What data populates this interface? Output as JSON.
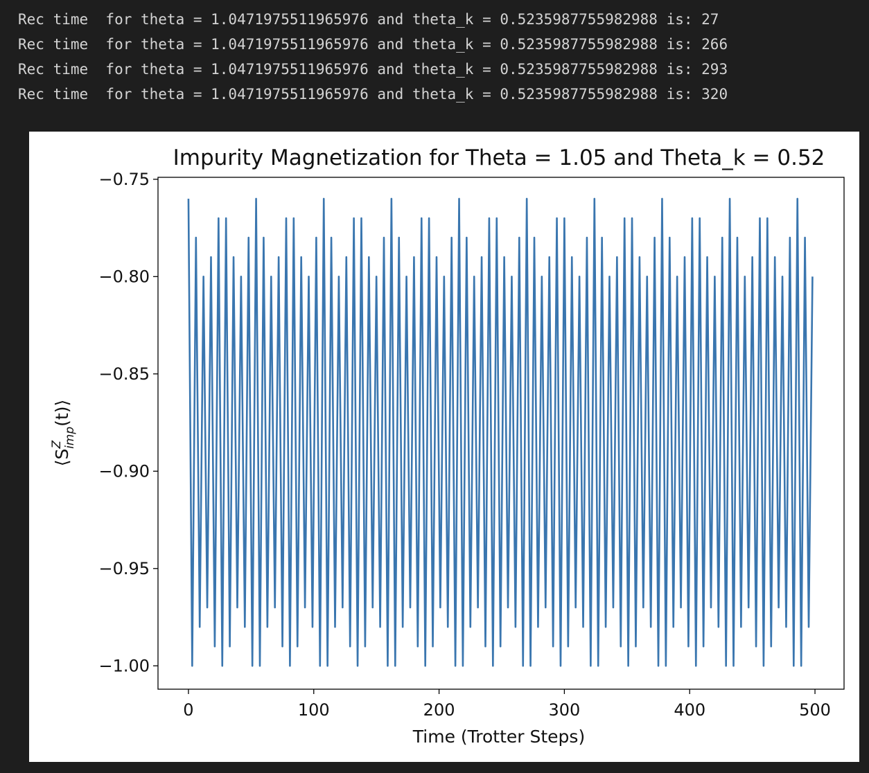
{
  "output_lines": [
    "Rec time  for theta = 1.0471975511965976 and theta_k = 0.5235987755982988 is: 27",
    "Rec time  for theta = 1.0471975511965976 and theta_k = 0.5235987755982988 is: 266",
    "Rec time  for theta = 1.0471975511965976 and theta_k = 0.5235987755982988 is: 293",
    "Rec time  for theta = 1.0471975511965976 and theta_k = 0.5235987755982988 is: 320"
  ],
  "chart_data": {
    "type": "line",
    "title": "Impurity Magnetization for Theta = 1.05 and Theta_k = 0.52",
    "xlabel": "Time (Trotter Steps)",
    "ylabel": {
      "base": "⟨S",
      "sup": "Z",
      "sub": "imp",
      "rest": "(t)⟩"
    },
    "color": "#3a76af",
    "xlim": [
      -24.3,
      523.2
    ],
    "ylim": [
      -1.012,
      -0.749
    ],
    "xticks": [
      0,
      100,
      200,
      300,
      400,
      500
    ],
    "yticks": [
      {
        "value": -0.75,
        "label": "−0.75"
      },
      {
        "value": -0.8,
        "label": "−0.80"
      },
      {
        "value": -0.85,
        "label": "−0.85"
      },
      {
        "value": -0.9,
        "label": "−0.90"
      },
      {
        "value": -0.95,
        "label": "−0.95"
      },
      {
        "value": -1.0,
        "label": "−1.00"
      }
    ],
    "x": [
      0,
      3,
      6,
      9,
      12,
      15,
      18,
      21,
      24,
      27,
      30,
      33,
      36,
      39,
      42,
      45,
      48,
      51,
      54,
      57,
      60,
      63,
      66,
      69,
      72,
      75,
      78,
      81,
      84,
      87,
      90,
      93,
      96,
      99,
      102,
      105,
      108,
      111,
      114,
      117,
      120,
      123,
      126,
      129,
      132,
      135,
      138,
      141,
      144,
      147,
      150,
      153,
      156,
      159,
      162,
      165,
      168,
      171,
      174,
      177,
      180,
      183,
      186,
      189,
      192,
      195,
      198,
      201,
      204,
      207,
      210,
      213,
      216,
      219,
      222,
      225,
      228,
      231,
      234,
      237,
      240,
      243,
      246,
      249,
      252,
      255,
      258,
      261,
      264,
      267,
      270,
      273,
      276,
      279,
      282,
      285,
      288,
      291,
      294,
      297,
      300,
      303,
      306,
      309,
      312,
      315,
      318,
      321,
      324,
      327,
      330,
      333,
      336,
      339,
      342,
      345,
      348,
      351,
      354,
      357,
      360,
      363,
      366,
      369,
      372,
      375,
      378,
      381,
      384,
      387,
      390,
      393,
      396,
      399,
      402,
      405,
      408,
      411,
      414,
      417,
      420,
      423,
      426,
      429,
      432,
      435,
      438,
      441,
      444,
      447,
      450,
      453,
      456,
      459,
      462,
      465,
      468,
      471,
      474,
      477,
      480,
      483,
      486,
      489,
      492,
      495,
      498
    ],
    "values": [
      -0.76,
      -1.0,
      -0.78,
      -0.98,
      -0.8,
      -0.97,
      -0.79,
      -0.99,
      -0.77,
      -1.0,
      -0.77,
      -0.99,
      -0.79,
      -0.97,
      -0.8,
      -0.98,
      -0.78,
      -1.0,
      -0.76,
      -1.0,
      -0.78,
      -0.98,
      -0.8,
      -0.97,
      -0.79,
      -0.99,
      -0.77,
      -1.0,
      -0.77,
      -0.99,
      -0.79,
      -0.97,
      -0.8,
      -0.98,
      -0.78,
      -1.0,
      -0.76,
      -1.0,
      -0.78,
      -0.98,
      -0.8,
      -0.97,
      -0.79,
      -0.99,
      -0.77,
      -1.0,
      -0.77,
      -0.99,
      -0.79,
      -0.97,
      -0.8,
      -0.98,
      -0.78,
      -1.0,
      -0.76,
      -1.0,
      -0.78,
      -0.98,
      -0.8,
      -0.97,
      -0.79,
      -0.99,
      -0.77,
      -1.0,
      -0.77,
      -0.99,
      -0.79,
      -0.97,
      -0.8,
      -0.98,
      -0.78,
      -1.0,
      -0.76,
      -1.0,
      -0.78,
      -0.98,
      -0.8,
      -0.97,
      -0.79,
      -0.99,
      -0.77,
      -1.0,
      -0.77,
      -0.99,
      -0.79,
      -0.97,
      -0.8,
      -0.98,
      -0.78,
      -1.0,
      -0.76,
      -1.0,
      -0.78,
      -0.98,
      -0.8,
      -0.97,
      -0.79,
      -0.99,
      -0.77,
      -1.0,
      -0.77,
      -0.99,
      -0.79,
      -0.97,
      -0.8,
      -0.98,
      -0.78,
      -1.0,
      -0.76,
      -1.0,
      -0.78,
      -0.98,
      -0.8,
      -0.97,
      -0.79,
      -0.99,
      -0.77,
      -1.0,
      -0.77,
      -0.99,
      -0.79,
      -0.97,
      -0.8,
      -0.98,
      -0.78,
      -1.0,
      -0.76,
      -1.0,
      -0.78,
      -0.98,
      -0.8,
      -0.97,
      -0.79,
      -0.99,
      -0.77,
      -1.0,
      -0.77,
      -0.99,
      -0.79,
      -0.97,
      -0.8,
      -0.98,
      -0.78,
      -1.0,
      -0.76,
      -1.0,
      -0.78,
      -0.98,
      -0.8,
      -0.97,
      -0.79,
      -0.99,
      -0.77,
      -1.0,
      -0.77,
      -0.99,
      -0.79,
      -0.97,
      -0.8,
      -0.98,
      -0.78,
      -1.0,
      -0.76,
      -1.0,
      -0.78,
      -0.98,
      -0.8
    ]
  }
}
